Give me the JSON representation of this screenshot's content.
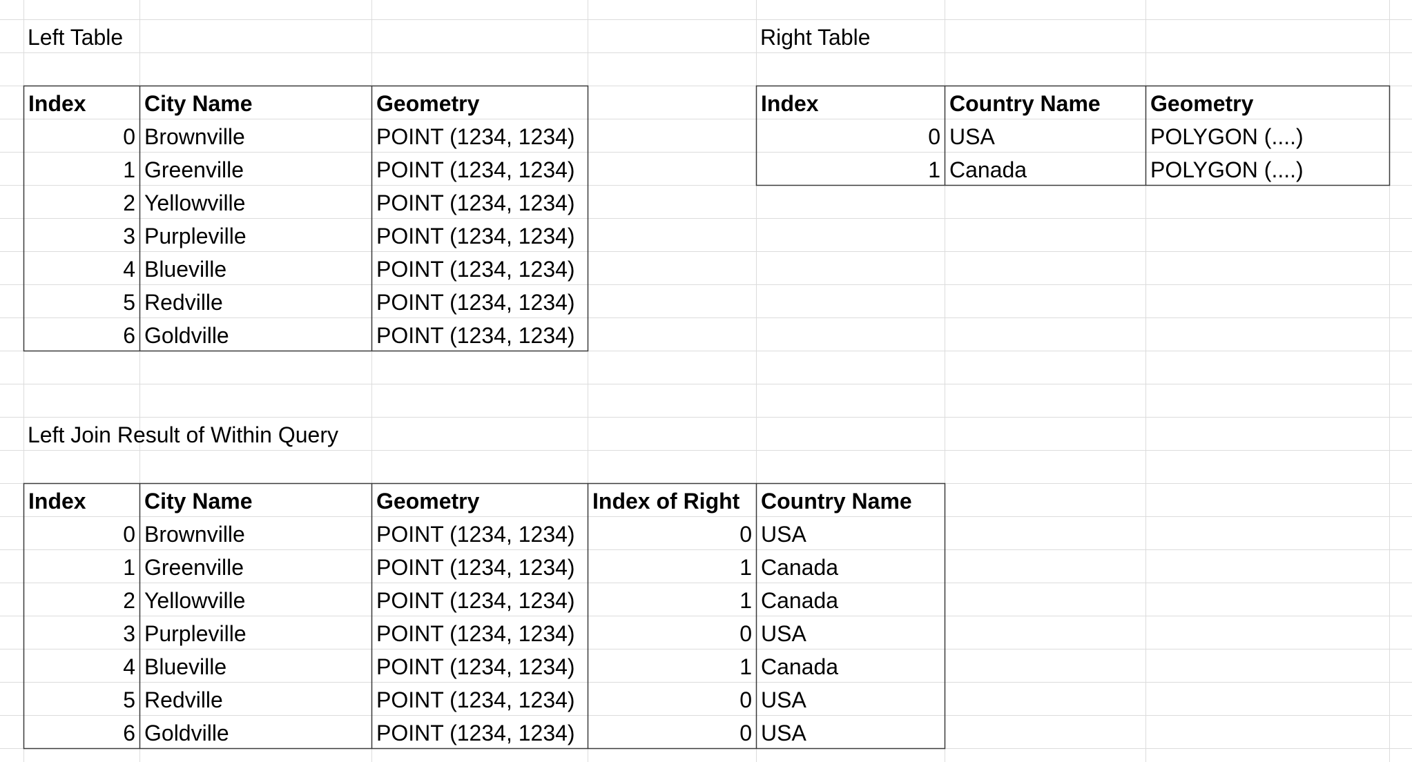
{
  "left_table": {
    "title": "Left Table",
    "headers": [
      "Index",
      "City Name",
      "Geometry"
    ],
    "rows": [
      {
        "index": "0",
        "city": "Brownville",
        "geometry": "POINT (1234, 1234)"
      },
      {
        "index": "1",
        "city": "Greenville",
        "geometry": "POINT (1234, 1234)"
      },
      {
        "index": "2",
        "city": "Yellowville",
        "geometry": "POINT (1234, 1234)"
      },
      {
        "index": "3",
        "city": "Purpleville",
        "geometry": "POINT (1234, 1234)"
      },
      {
        "index": "4",
        "city": "Blueville",
        "geometry": "POINT (1234, 1234)"
      },
      {
        "index": "5",
        "city": "Redville",
        "geometry": "POINT (1234, 1234)"
      },
      {
        "index": "6",
        "city": "Goldville",
        "geometry": "POINT (1234, 1234)"
      }
    ]
  },
  "right_table": {
    "title": "Right Table",
    "headers": [
      "Index",
      "Country Name",
      "Geometry"
    ],
    "rows": [
      {
        "index": "0",
        "country": "USA",
        "geometry": "POLYGON (....)"
      },
      {
        "index": "1",
        "country": "Canada",
        "geometry": "POLYGON (....)"
      }
    ]
  },
  "result_table": {
    "title": "Left Join Result of Within Query",
    "headers": [
      "Index",
      "City Name",
      "Geometry",
      "Index of Right",
      "Country Name"
    ],
    "rows": [
      {
        "index": "0",
        "city": "Brownville",
        "geometry": "POINT (1234, 1234)",
        "index_right": "0",
        "country": "USA"
      },
      {
        "index": "1",
        "city": "Greenville",
        "geometry": "POINT (1234, 1234)",
        "index_right": "1",
        "country": "Canada"
      },
      {
        "index": "2",
        "city": "Yellowville",
        "geometry": "POINT (1234, 1234)",
        "index_right": "1",
        "country": "Canada"
      },
      {
        "index": "3",
        "city": "Purpleville",
        "geometry": "POINT (1234, 1234)",
        "index_right": "0",
        "country": "USA"
      },
      {
        "index": "4",
        "city": "Blueville",
        "geometry": "POINT (1234, 1234)",
        "index_right": "1",
        "country": "Canada"
      },
      {
        "index": "5",
        "city": "Redville",
        "geometry": "POINT (1234, 1234)",
        "index_right": "0",
        "country": "USA"
      },
      {
        "index": "6",
        "city": "Goldville",
        "geometry": "POINT (1234, 1234)",
        "index_right": "0",
        "country": "USA"
      }
    ]
  }
}
